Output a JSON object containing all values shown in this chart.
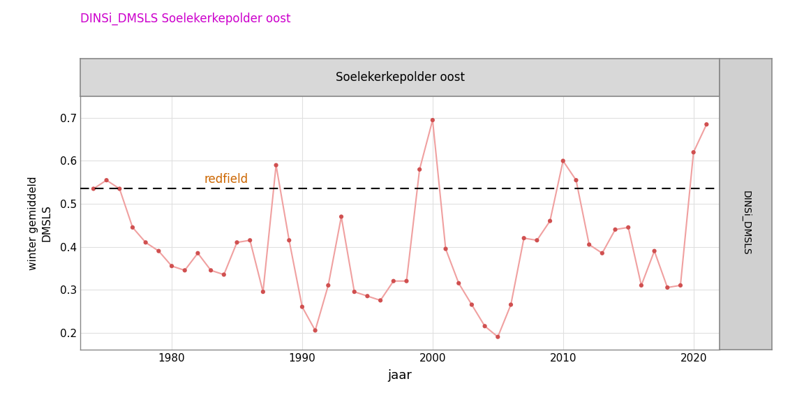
{
  "title": "DINSi_DMSLS Soelekerkepolder oost",
  "panel_title": "Soelekerkepolder oost",
  "right_label": "DINSi_DMSLS",
  "xlabel": "jaar",
  "ylabel": "winter gemiddeld\nDMSLS",
  "redfield_label": "redfield",
  "redfield_value": 0.535,
  "years": [
    1974,
    1975,
    1976,
    1977,
    1978,
    1979,
    1980,
    1981,
    1982,
    1983,
    1984,
    1985,
    1986,
    1987,
    1988,
    1989,
    1990,
    1991,
    1992,
    1993,
    1994,
    1995,
    1996,
    1997,
    1998,
    1999,
    2000,
    2001,
    2002,
    2003,
    2004,
    2005,
    2006,
    2007,
    2008,
    2009,
    2010,
    2011,
    2012,
    2013,
    2014,
    2015,
    2016,
    2017,
    2018,
    2019,
    2020,
    2021
  ],
  "values": [
    0.535,
    0.555,
    0.535,
    0.445,
    0.41,
    0.39,
    0.355,
    0.345,
    0.385,
    0.345,
    0.335,
    0.41,
    0.415,
    0.295,
    0.59,
    0.415,
    0.26,
    0.205,
    0.31,
    0.47,
    0.295,
    0.285,
    0.275,
    0.32,
    0.32,
    0.58,
    0.695,
    0.395,
    0.315,
    0.265,
    0.215,
    0.19,
    0.265,
    0.42,
    0.415,
    0.46,
    0.6,
    0.555,
    0.405,
    0.385,
    0.44,
    0.445,
    0.31,
    0.39,
    0.305,
    0.31,
    0.62,
    0.685
  ],
  "line_color": "#F0A0A0",
  "marker_color": "#D05050",
  "redfield_color": "#CC6600",
  "title_color": "#CC00CC",
  "background_color": "#FFFFFF",
  "panel_bg": "#D8D8D8",
  "right_strip_bg": "#D0D0D0",
  "grid_color": "#E0E0E0",
  "ylim": [
    0.16,
    0.75
  ],
  "xlim": [
    1973,
    2022
  ],
  "yticks": [
    0.2,
    0.3,
    0.4,
    0.5,
    0.6,
    0.7
  ],
  "xticks": [
    1980,
    1990,
    2000,
    2010,
    2020
  ]
}
